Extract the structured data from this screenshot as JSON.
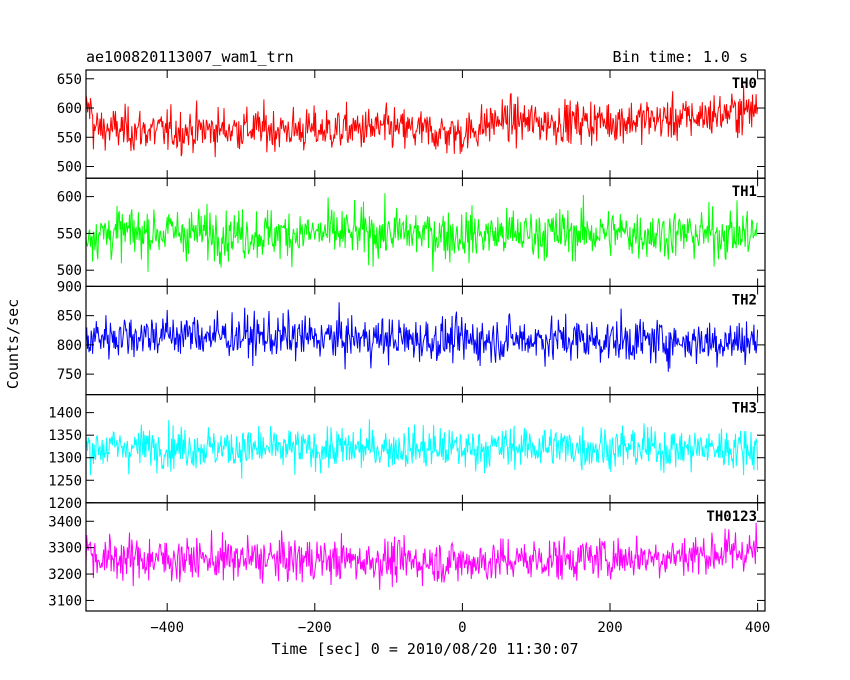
{
  "chart_data": {
    "type": "line",
    "title": "ae100820113007_wam1_trn",
    "subtitle": "Bin time: 1.0 s",
    "xlabel": "Time [sec] 0 = 2010/08/20 11:30:07",
    "ylabel": "Counts/sec",
    "xlim": [
      -510,
      410
    ],
    "xticks": [
      -400,
      -200,
      0,
      200,
      400
    ],
    "x_range": [
      -510,
      400
    ],
    "grid": false,
    "panels": [
      {
        "name": "TH0",
        "color": "#ff0000",
        "ylim": [
          480,
          665
        ],
        "yticks": [
          500,
          550,
          600,
          650
        ],
        "mean": 568,
        "noise": 26,
        "trend": 28,
        "points": [
          [
            -500,
            565
          ],
          [
            -400,
            560
          ],
          [
            -300,
            565
          ],
          [
            -200,
            562
          ],
          [
            -100,
            565
          ],
          [
            0,
            555
          ],
          [
            50,
            580
          ],
          [
            100,
            575
          ],
          [
            200,
            578
          ],
          [
            300,
            582
          ],
          [
            400,
            598
          ]
        ]
      },
      {
        "name": "TH1",
        "color": "#00ff00",
        "ylim": [
          478,
          625
        ],
        "yticks": [
          500,
          550,
          600
        ],
        "mean": 550,
        "noise": 24,
        "trend": 0,
        "points": [
          [
            -500,
            550
          ],
          [
            -400,
            552
          ],
          [
            -300,
            549
          ],
          [
            -200,
            550
          ],
          [
            -100,
            551
          ],
          [
            0,
            548
          ],
          [
            100,
            550
          ],
          [
            200,
            551
          ],
          [
            300,
            549
          ],
          [
            400,
            550
          ]
        ]
      },
      {
        "name": "TH2",
        "color": "#0000ff",
        "ylim": [
          715,
          900
        ],
        "yticks": [
          750,
          800,
          850,
          900
        ],
        "mean": 812,
        "noise": 27,
        "trend": -6,
        "points": [
          [
            -500,
            815
          ],
          [
            -400,
            818
          ],
          [
            -300,
            815
          ],
          [
            -200,
            812
          ],
          [
            -100,
            810
          ],
          [
            0,
            808
          ],
          [
            100,
            810
          ],
          [
            200,
            808
          ],
          [
            300,
            806
          ],
          [
            400,
            806
          ]
        ]
      },
      {
        "name": "TH3",
        "color": "#00ffff",
        "ylim": [
          1200,
          1440
        ],
        "yticks": [
          1200,
          1250,
          1300,
          1350,
          1400
        ],
        "mean": 1322,
        "noise": 33,
        "trend": 0,
        "points": [
          [
            -500,
            1322
          ],
          [
            -400,
            1325
          ],
          [
            -300,
            1320
          ],
          [
            -200,
            1318
          ],
          [
            -100,
            1322
          ],
          [
            0,
            1320
          ],
          [
            100,
            1325
          ],
          [
            200,
            1322
          ],
          [
            300,
            1320
          ],
          [
            400,
            1322
          ]
        ]
      },
      {
        "name": "TH0123",
        "color": "#ff00ff",
        "ylim": [
          3060,
          3470
        ],
        "yticks": [
          3100,
          3200,
          3300,
          3400
        ],
        "mean": 3262,
        "noise": 58,
        "trend": 30,
        "points": [
          [
            -500,
            3260
          ],
          [
            -400,
            3258
          ],
          [
            -300,
            3255
          ],
          [
            -200,
            3255
          ],
          [
            -100,
            3250
          ],
          [
            0,
            3245
          ],
          [
            100,
            3255
          ],
          [
            200,
            3262
          ],
          [
            300,
            3270
          ],
          [
            400,
            3290
          ]
        ]
      }
    ]
  }
}
